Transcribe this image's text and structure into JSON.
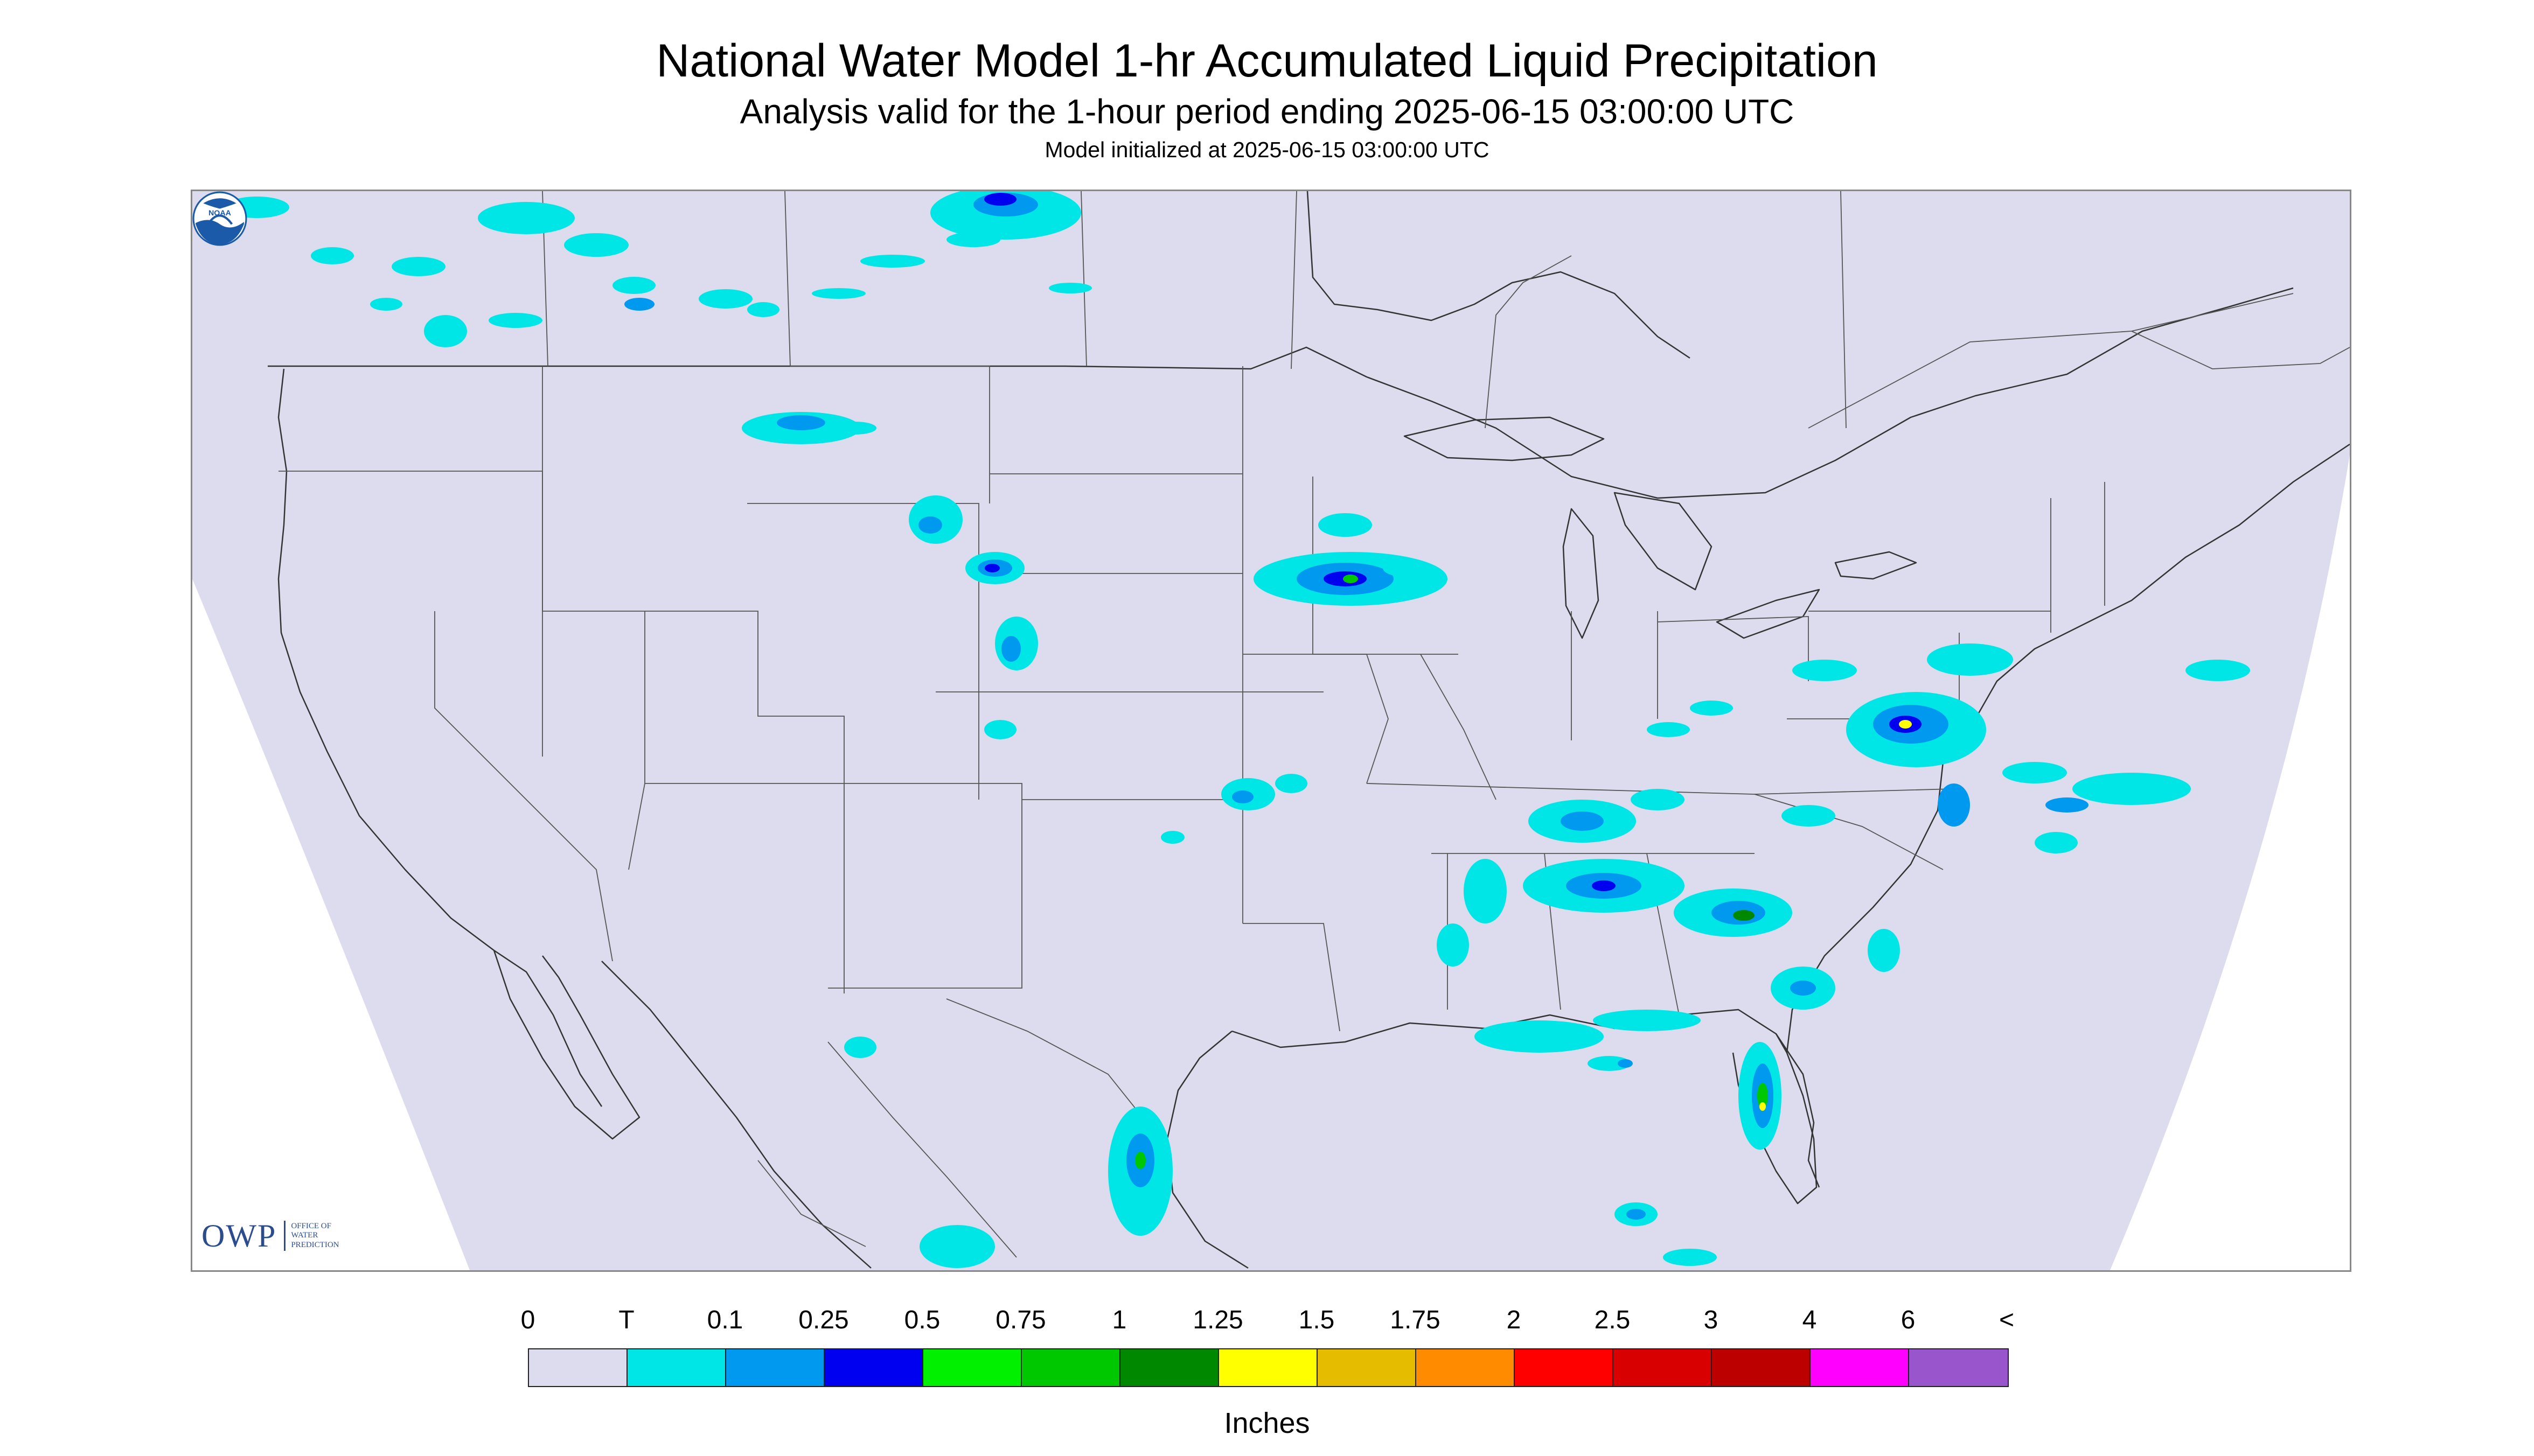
{
  "header": {
    "title": "National Water Model 1-hr Accumulated Liquid Precipitation",
    "subtitle": "Analysis valid for the 1-hour period ending 2025-06-15 03:00:00 UTC",
    "init_line": "Model initialized at 2025-06-15 03:00:00 UTC"
  },
  "map": {
    "region": "CONUS and surrounding areas",
    "background_color": "#ffffff",
    "domain_color": "#dcdcee",
    "boundary_color": "#333333",
    "precipitation_areas": [
      {
        "region": "British Columbia / Alberta",
        "class": "T-0.1"
      },
      {
        "region": "Saskatchewan",
        "class": "0.25-0.5"
      },
      {
        "region": "Montana",
        "class": "0.1-0.25"
      },
      {
        "region": "Nebraska Panhandle",
        "class": "0.25-0.5"
      },
      {
        "region": "Colorado",
        "class": "0.1-0.25"
      },
      {
        "region": "Minnesota / Iowa",
        "class": "0.5-0.75"
      },
      {
        "region": "Oklahoma",
        "class": "0.25-0.5"
      },
      {
        "region": "Tennessee / Arkansas",
        "class": "0.25-0.5"
      },
      {
        "region": "Mississippi / Alabama",
        "class": "0.25-0.5"
      },
      {
        "region": "Georgia / South Carolina",
        "class": "0.75-1"
      },
      {
        "region": "Virginia / Maryland",
        "class": "1-1.25"
      },
      {
        "region": "Florida",
        "class": "1-1.25"
      },
      {
        "region": "Gulf Coast",
        "class": "0.1-0.25"
      },
      {
        "region": "Yucatan Peninsula",
        "class": "0.5-0.75"
      },
      {
        "region": "Atlantic offshore",
        "class": "0.1-0.25"
      }
    ]
  },
  "logos": {
    "owp": {
      "letters": "OWP",
      "line1": "OFFICE OF",
      "line2": "WATER",
      "line3": "PREDICTION",
      "color": "#2b4d8e"
    },
    "noaa": {
      "text": "NOAA",
      "icon": "noaa-logo-icon"
    }
  },
  "legend": {
    "labels": [
      "0",
      "T",
      "0.1",
      "0.25",
      "0.5",
      "0.75",
      "1",
      "1.25",
      "1.5",
      "1.75",
      "2",
      "2.5",
      "3",
      "4",
      "6",
      "<"
    ],
    "colors": [
      "#dcdcee",
      "#00e5e5",
      "#0099f0",
      "#0000f0",
      "#00f000",
      "#00c800",
      "#008800",
      "#ffff00",
      "#e6bc00",
      "#ff8c00",
      "#ff0000",
      "#d80000",
      "#bc0000",
      "#ff00ff",
      "#9955cc"
    ],
    "units": "Inches"
  }
}
